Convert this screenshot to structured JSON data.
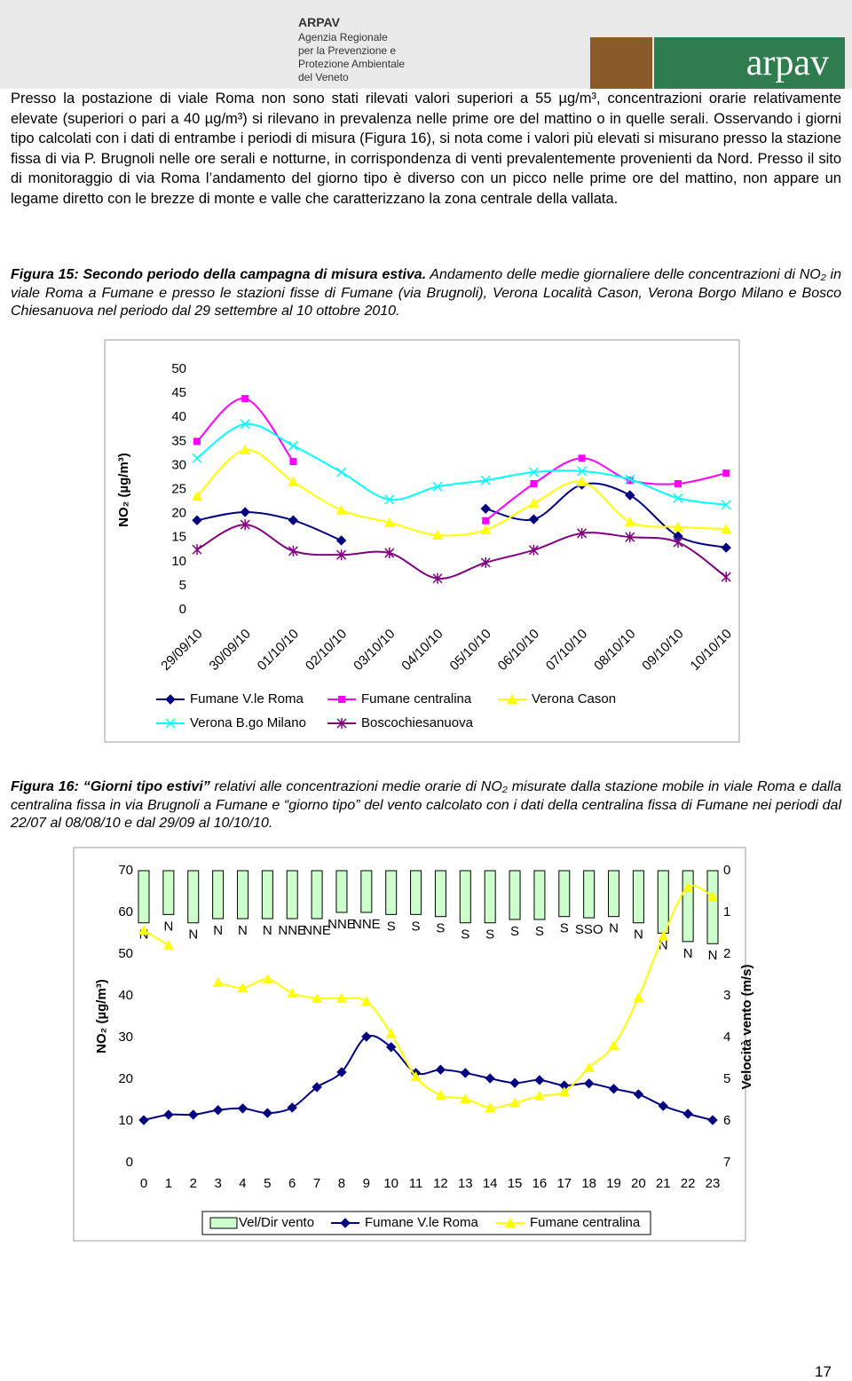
{
  "header": {
    "org": [
      "ARPAV",
      "Agenzia Regionale",
      "per la Prevenzione e",
      "Protezione Ambientale",
      "del Veneto"
    ],
    "logo": "arpav"
  },
  "paragraph": "Presso la postazione di viale Roma non sono stati rilevati valori superiori a 55 µg/m³, concentrazioni orarie relativamente elevate (superiori o pari a 40 µg/m³) si rilevano in prevalenza nelle prime ore del mattino o in quelle serali. Osservando i giorni tipo calcolati con i dati di entrambe i periodi di misura (Figura 16), si nota come i valori più elevati si misurano presso la stazione fissa di via P. Brugnoli nelle ore serali e notturne, in corrispondenza di venti prevalentemente provenienti da Nord. Presso il sito di monitoraggio di via Roma l’andamento del giorno tipo è diverso con un picco nelle prime ore del mattino, non appare un legame diretto con le brezze di monte e valle che caratterizzano la zona centrale della vallata.",
  "caption15": {
    "lead": "Figura 15: Secondo periodo della campagna di misura estiva.",
    "rest": " Andamento delle medie giornaliere delle concentrazioni di NO₂ in viale Roma a Fumane e presso le stazioni fisse di Fumane (via Brugnoli), Verona Località Cason, Verona Borgo Milano e Bosco Chiesanuova nel periodo dal 29 settembre al 10 ottobre 2010."
  },
  "caption16": {
    "lead": "Figura 16:",
    "emph": "“Giorni tipo estivi”",
    "rest": " relativi alle concentrazioni medie orarie di NO₂ misurate dalla stazione mobile in viale Roma e dalla centralina fissa in via Brugnoli a Fumane e “giorno tipo” del vento calcolato con i dati della centralina fissa di Fumane nei periodi dal 22/07 al 08/08/10 e dal 29/09 al 10/10/10."
  },
  "page_number": "17",
  "chart_data": [
    {
      "type": "line",
      "y_label": "NO₂ (µg/m³)",
      "categories": [
        "29/09/10",
        "30/09/10",
        "01/10/10",
        "02/10/10",
        "03/10/10",
        "04/10/10",
        "05/10/10",
        "06/10/10",
        "07/10/10",
        "08/10/10",
        "09/10/10",
        "10/10/10"
      ],
      "ylim": [
        0,
        50
      ],
      "yticks": [
        0,
        5,
        10,
        15,
        20,
        25,
        30,
        35,
        40,
        45,
        50
      ],
      "series": [
        {
          "name": "Fumane V.le Roma",
          "color": "#000080",
          "marker": "diamond",
          "values": [
            18.6,
            20.3,
            18.6,
            14.4,
            null,
            null,
            21,
            18.8,
            26,
            23.8,
            15.3,
            12.9
          ]
        },
        {
          "name": "Fumane centralina",
          "color": "#ff00ff",
          "marker": "square",
          "values": [
            35,
            43.9,
            30.8,
            null,
            null,
            null,
            18.5,
            26.2,
            31.5,
            26.9,
            26.2,
            28.4
          ]
        },
        {
          "name": "Verona Cason",
          "color": "#ffff00",
          "marker": "triangle",
          "values": [
            23.6,
            33.2,
            26.6,
            20.7,
            18.1,
            15.5,
            16.6,
            22.1,
            26.6,
            18.3,
            17.2,
            16.8
          ]
        },
        {
          "name": "Verona B.go Milano",
          "color": "#00ffff",
          "marker": "x",
          "values": [
            31.5,
            38.6,
            34.1,
            28.6,
            22.9,
            25.6,
            26.9,
            28.6,
            28.8,
            27.1,
            23.2,
            21.8
          ]
        },
        {
          "name": "Boscochiesanuova",
          "color": "#800080",
          "marker": "star",
          "values": [
            12.5,
            17.7,
            12.2,
            11.4,
            11.8,
            6.5,
            9.8,
            12.4,
            15.9,
            15.1,
            14,
            6.8
          ]
        }
      ]
    },
    {
      "type": "combo",
      "y_label": "NO₂ (µg/m³)",
      "y2_label": "Velocità vento (m/s)",
      "categories": [
        0,
        1,
        2,
        3,
        4,
        5,
        6,
        7,
        8,
        9,
        10,
        11,
        12,
        13,
        14,
        15,
        16,
        17,
        18,
        19,
        20,
        21,
        22,
        23
      ],
      "ylim": [
        0,
        70
      ],
      "yticks": [
        0,
        10,
        20,
        30,
        40,
        50,
        60,
        70
      ],
      "y2lim": [
        7,
        0
      ],
      "y2ticks": [
        0,
        1,
        2,
        3,
        4,
        5,
        6,
        7
      ],
      "series": [
        {
          "name": "Vel/Dir vento",
          "kind": "bar",
          "axis": "y2",
          "color": "#ccffcc",
          "values": [
            1.25,
            1.05,
            1.25,
            1.15,
            1.15,
            1.15,
            1.15,
            1.15,
            1.0,
            1.0,
            1.05,
            1.05,
            1.1,
            1.25,
            1.25,
            1.17,
            1.17,
            1.1,
            1.13,
            1.1,
            1.25,
            1.5,
            1.7,
            1.75
          ],
          "labels": [
            "N",
            "N",
            "N",
            "N",
            "N",
            "N",
            "NNE",
            "NNE",
            "NNE",
            "NNE",
            "S",
            "S",
            "S",
            "S",
            "S",
            "S",
            "S",
            "S",
            "SSO",
            "N",
            "N",
            "N",
            "N",
            "N"
          ]
        },
        {
          "name": "Fumane V.le Roma",
          "kind": "line",
          "color": "#000080",
          "marker": "diamond",
          "values": [
            10.2,
            11.5,
            11.5,
            12.6,
            13,
            11.9,
            13.2,
            18.1,
            21.7,
            30.2,
            27.7,
            21.5,
            22.3,
            21.5,
            20.2,
            19.1,
            19.8,
            18.5,
            19,
            17.7,
            16.4,
            13.6,
            11.7,
            10.2
          ]
        },
        {
          "name": "Fumane centralina",
          "kind": "line",
          "color": "#ffff00",
          "marker": "triangle",
          "values": [
            55.7,
            52.1,
            null,
            43.2,
            41.9,
            44,
            40.6,
            39.4,
            39.4,
            38.7,
            30.9,
            20.6,
            16.2,
            15.3,
            13.2,
            14.3,
            16,
            17,
            22.8,
            28.1,
            39.6,
            54.3,
            66,
            63.8
          ]
        }
      ]
    }
  ]
}
